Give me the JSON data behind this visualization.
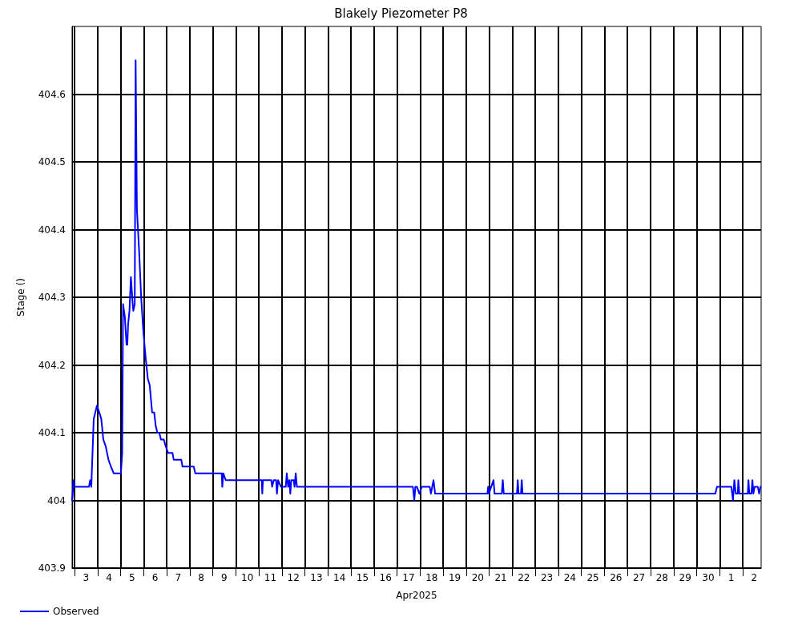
{
  "chart_data": {
    "type": "line",
    "title": "Blakely Piezometer P8",
    "xlabel": "Apr2025",
    "ylabel": "Stage ()",
    "xlim": [
      "2025-04-02T21:30",
      "2025-05-02T19:10"
    ],
    "xticks": [
      {
        "value": "2025-04-03T00:00",
        "label": null
      },
      {
        "value": "2025-04-03T12:00",
        "label": "3"
      },
      {
        "value": "2025-04-04T00:00",
        "label": null
      },
      {
        "value": "2025-04-04T12:00",
        "label": "4"
      },
      {
        "value": "2025-04-05T00:00",
        "label": null
      },
      {
        "value": "2025-04-05T12:00",
        "label": "5"
      },
      {
        "value": "2025-04-06T00:00",
        "label": null
      },
      {
        "value": "2025-04-06T12:00",
        "label": "6"
      },
      {
        "value": "2025-04-07T00:00",
        "label": null
      },
      {
        "value": "2025-04-07T12:00",
        "label": "7"
      },
      {
        "value": "2025-04-08T00:00",
        "label": null
      },
      {
        "value": "2025-04-08T12:00",
        "label": "8"
      },
      {
        "value": "2025-04-09T00:00",
        "label": null
      },
      {
        "value": "2025-04-09T12:00",
        "label": "9"
      },
      {
        "value": "2025-04-10T00:00",
        "label": null
      },
      {
        "value": "2025-04-10T12:00",
        "label": "10"
      },
      {
        "value": "2025-04-11T00:00",
        "label": null
      },
      {
        "value": "2025-04-11T12:00",
        "label": "11"
      },
      {
        "value": "2025-04-12T00:00",
        "label": null
      },
      {
        "value": "2025-04-12T12:00",
        "label": "12"
      },
      {
        "value": "2025-04-13T00:00",
        "label": null
      },
      {
        "value": "2025-04-13T12:00",
        "label": "13"
      },
      {
        "value": "2025-04-14T00:00",
        "label": null
      },
      {
        "value": "2025-04-14T12:00",
        "label": "14"
      },
      {
        "value": "2025-04-15T00:00",
        "label": null
      },
      {
        "value": "2025-04-15T12:00",
        "label": "15"
      },
      {
        "value": "2025-04-16T00:00",
        "label": null
      },
      {
        "value": "2025-04-16T12:00",
        "label": "16"
      },
      {
        "value": "2025-04-17T00:00",
        "label": null
      },
      {
        "value": "2025-04-17T12:00",
        "label": "17"
      },
      {
        "value": "2025-04-18T00:00",
        "label": null
      },
      {
        "value": "2025-04-18T12:00",
        "label": "18"
      },
      {
        "value": "2025-04-19T00:00",
        "label": null
      },
      {
        "value": "2025-04-19T12:00",
        "label": "19"
      },
      {
        "value": "2025-04-20T00:00",
        "label": null
      },
      {
        "value": "2025-04-20T12:00",
        "label": "20"
      },
      {
        "value": "2025-04-21T00:00",
        "label": null
      },
      {
        "value": "2025-04-21T12:00",
        "label": "21"
      },
      {
        "value": "2025-04-22T00:00",
        "label": null
      },
      {
        "value": "2025-04-22T12:00",
        "label": "22"
      },
      {
        "value": "2025-04-23T00:00",
        "label": null
      },
      {
        "value": "2025-04-23T12:00",
        "label": "23"
      },
      {
        "value": "2025-04-24T00:00",
        "label": null
      },
      {
        "value": "2025-04-24T12:00",
        "label": "24"
      },
      {
        "value": "2025-04-25T00:00",
        "label": null
      },
      {
        "value": "2025-04-25T12:00",
        "label": "25"
      },
      {
        "value": "2025-04-26T00:00",
        "label": null
      },
      {
        "value": "2025-04-26T12:00",
        "label": "26"
      },
      {
        "value": "2025-04-27T00:00",
        "label": null
      },
      {
        "value": "2025-04-27T12:00",
        "label": "27"
      },
      {
        "value": "2025-04-28T00:00",
        "label": null
      },
      {
        "value": "2025-04-28T12:00",
        "label": "28"
      },
      {
        "value": "2025-04-29T00:00",
        "label": null
      },
      {
        "value": "2025-04-29T12:00",
        "label": "29"
      },
      {
        "value": "2025-04-30T00:00",
        "label": null
      },
      {
        "value": "2025-04-30T12:00",
        "label": "30"
      },
      {
        "value": "2025-05-01T00:00",
        "label": null
      },
      {
        "value": "2025-05-01T12:00",
        "label": "1"
      },
      {
        "value": "2025-05-02T00:00",
        "label": null
      },
      {
        "value": "2025-05-02T12:00",
        "label": "2"
      }
    ],
    "ylim": [
      403.9,
      404.7
    ],
    "yticks": [
      403.9,
      404.0,
      404.1,
      404.2,
      404.3,
      404.4,
      404.5,
      404.6
    ],
    "grid": true,
    "legend": "bottom left",
    "marker": "none",
    "line_style": "solid",
    "series": [
      {
        "name": "Observed",
        "color": "#0000ff",
        "x": [
          "2025-04-02T21:30",
          "2025-04-02T23:10",
          "2025-04-03T00:00",
          "2025-04-03T15:00",
          "2025-04-03T16:20",
          "2025-04-03T17:30",
          "2025-04-03T20:00",
          "2025-04-03T23:20",
          "2025-04-04T01:50",
          "2025-04-04T03:55",
          "2025-04-04T06:00",
          "2025-04-04T08:30",
          "2025-04-04T09:55",
          "2025-04-04T11:25",
          "2025-04-04T13:55",
          "2025-04-04T16:50",
          "2025-04-05T00:20",
          "2025-04-05T01:40",
          "2025-04-05T02:35",
          "2025-04-05T04:30",
          "2025-04-05T06:10",
          "2025-04-05T07:00",
          "2025-04-05T07:50",
          "2025-04-05T09:15",
          "2025-04-05T10:45",
          "2025-04-05T12:35",
          "2025-04-05T13:15",
          "2025-04-05T14:45",
          "2025-04-05T15:40",
          "2025-04-05T17:00",
          "2025-04-05T19:15",
          "2025-04-05T21:25",
          "2025-04-05T23:40",
          "2025-04-06T02:10",
          "2025-04-06T04:20",
          "2025-04-06T06:20",
          "2025-04-06T08:50",
          "2025-04-06T11:00",
          "2025-04-06T12:35",
          "2025-04-06T14:20",
          "2025-04-06T16:20",
          "2025-04-06T18:00",
          "2025-04-06T21:00",
          "2025-04-06T23:00",
          "2025-04-07T01:30",
          "2025-04-07T06:05",
          "2025-04-07T07:20",
          "2025-04-07T15:15",
          "2025-04-07T16:30",
          "2025-04-08T04:10",
          "2025-04-08T05:50",
          "2025-04-09T09:20",
          "2025-04-09T09:55",
          "2025-04-09T11:00",
          "2025-04-09T13:30",
          "2025-04-11T03:00",
          "2025-04-11T03:35",
          "2025-04-11T04:15",
          "2025-04-11T13:00",
          "2025-04-11T13:50",
          "2025-04-11T15:30",
          "2025-04-11T18:00",
          "2025-04-11T18:50",
          "2025-04-11T20:05",
          "2025-04-11T23:00",
          "2025-04-12T04:00",
          "2025-04-12T05:05",
          "2025-04-12T06:30",
          "2025-04-12T07:45",
          "2025-04-12T08:45",
          "2025-04-12T09:50",
          "2025-04-12T12:20",
          "2025-04-12T13:10",
          "2025-04-12T14:25",
          "2025-04-12T15:40",
          "2025-04-17T16:30",
          "2025-04-17T17:55",
          "2025-04-17T19:00",
          "2025-04-17T20:40",
          "2025-04-17T23:10",
          "2025-04-18T01:40",
          "2025-04-18T10:00",
          "2025-04-18T11:15",
          "2025-04-18T13:55",
          "2025-04-18T15:35",
          "2025-04-20T22:00",
          "2025-04-20T22:50",
          "2025-04-20T23:40",
          "2025-04-21T04:25",
          "2025-04-21T05:30",
          "2025-04-21T13:00",
          "2025-04-21T14:05",
          "2025-04-21T15:05",
          "2025-04-22T04:50",
          "2025-04-22T05:40",
          "2025-04-22T06:30",
          "2025-04-22T09:00",
          "2025-04-22T09:50",
          "2025-04-22T10:40",
          "2025-04-30T19:30",
          "2025-04-30T21:10",
          "2025-05-01T12:10",
          "2025-05-01T13:50",
          "2025-05-01T15:15",
          "2025-05-01T16:45",
          "2025-05-01T18:50",
          "2025-05-01T19:25",
          "2025-05-01T20:30",
          "2025-05-02T05:15",
          "2025-05-02T05:55",
          "2025-05-02T06:55",
          "2025-05-02T09:00",
          "2025-05-02T10:05",
          "2025-05-02T11:05",
          "2025-05-02T12:20",
          "2025-05-02T15:40",
          "2025-05-02T17:05",
          "2025-05-02T18:25"
        ],
        "values": [
          404.0,
          404.03,
          404.02,
          404.02,
          404.03,
          404.02,
          404.12,
          404.14,
          404.13,
          404.12,
          404.09,
          404.08,
          404.07,
          404.06,
          404.05,
          404.04,
          404.04,
          404.07,
          404.29,
          404.27,
          404.23,
          404.23,
          404.26,
          404.28,
          404.33,
          404.29,
          404.28,
          404.29,
          404.65,
          404.43,
          404.37,
          404.3,
          404.25,
          404.21,
          404.18,
          404.17,
          404.13,
          404.13,
          404.11,
          404.1,
          404.1,
          404.09,
          404.09,
          404.08,
          404.07,
          404.07,
          404.06,
          404.06,
          404.05,
          404.05,
          404.04,
          404.04,
          404.02,
          404.04,
          404.03,
          404.03,
          404.01,
          404.03,
          404.03,
          404.02,
          404.03,
          404.03,
          404.01,
          404.03,
          404.02,
          404.02,
          404.04,
          404.02,
          404.03,
          404.01,
          404.03,
          404.03,
          404.02,
          404.04,
          404.02,
          404.02,
          404.0,
          404.02,
          404.02,
          404.01,
          404.02,
          404.02,
          404.01,
          404.03,
          404.01,
          404.01,
          404.02,
          404.01,
          404.03,
          404.01,
          404.01,
          404.03,
          404.01,
          404.01,
          404.03,
          404.01,
          404.01,
          404.03,
          404.01,
          404.01,
          404.02,
          404.02,
          404.0,
          404.03,
          404.01,
          404.01,
          404.03,
          404.01,
          404.01,
          404.03,
          404.01,
          404.01,
          404.03,
          404.01,
          404.02,
          404.02,
          404.01,
          404.02
        ]
      }
    ]
  }
}
